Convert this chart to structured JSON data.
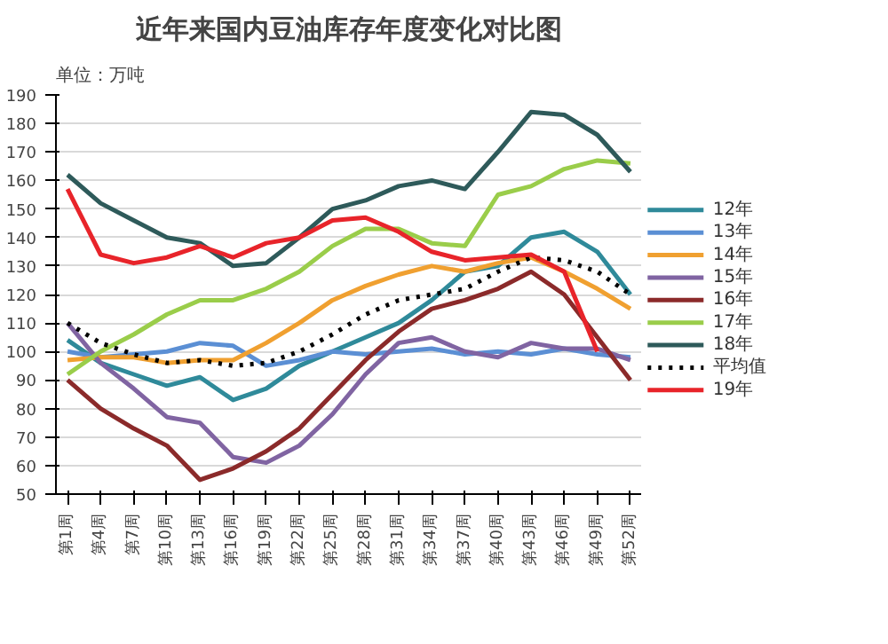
{
  "chart_data": {
    "type": "line",
    "title": "近年来国内豆油库存年度变化对比图",
    "ylabel": "单位：万吨",
    "categories": [
      "第1周",
      "第4周",
      "第7周",
      "第10周",
      "第13周",
      "第16周",
      "第19周",
      "第22周",
      "第25周",
      "第28周",
      "第31周",
      "第34周",
      "第37周",
      "第40周",
      "第43周",
      "第46周",
      "第49周",
      "第52周"
    ],
    "ylim": [
      50,
      190
    ],
    "yticks": [
      50,
      60,
      70,
      80,
      90,
      100,
      110,
      120,
      130,
      140,
      150,
      160,
      170,
      180,
      190
    ],
    "grid": "y",
    "legend": "right",
    "marker": "none",
    "series": [
      {
        "name": "12年",
        "color": "#2f8a9a",
        "values": [
          104,
          96,
          92,
          88,
          91,
          83,
          87,
          95,
          100,
          105,
          110,
          118,
          128,
          130,
          140,
          142,
          135,
          120
        ]
      },
      {
        "name": "13年",
        "color": "#5b8fd4",
        "values": [
          100,
          98,
          99,
          100,
          103,
          102,
          95,
          97,
          100,
          99,
          100,
          101,
          99,
          100,
          99,
          101,
          99,
          98
        ]
      },
      {
        "name": "14年",
        "color": "#f0a030",
        "values": [
          97,
          98,
          98,
          96,
          97,
          97,
          103,
          110,
          118,
          123,
          127,
          130,
          128,
          131,
          133,
          128,
          122,
          115
        ]
      },
      {
        "name": "15年",
        "color": "#8064a2",
        "values": [
          110,
          96,
          87,
          77,
          75,
          63,
          61,
          67,
          78,
          92,
          103,
          105,
          100,
          98,
          103,
          101,
          101,
          97
        ]
      },
      {
        "name": "16年",
        "color": "#8b2a2a",
        "values": [
          90,
          80,
          73,
          67,
          55,
          59,
          65,
          73,
          85,
          97,
          107,
          115,
          118,
          122,
          128,
          120,
          105,
          90
        ]
      },
      {
        "name": "17年",
        "color": "#9acd4a",
        "values": [
          92,
          100,
          106,
          113,
          118,
          118,
          122,
          128,
          137,
          143,
          143,
          138,
          137,
          155,
          158,
          164,
          167,
          166
        ]
      },
      {
        "name": "18年",
        "color": "#2e5a5a",
        "values": [
          162,
          152,
          146,
          140,
          138,
          130,
          131,
          140,
          150,
          153,
          158,
          160,
          157,
          170,
          184,
          183,
          176,
          163
        ]
      },
      {
        "name": "平均值",
        "color": "#000000",
        "line_style": "dotted",
        "values": [
          110,
          103,
          99,
          96,
          97,
          95,
          96,
          100,
          106,
          113,
          118,
          120,
          122,
          128,
          133,
          132,
          128,
          120
        ]
      },
      {
        "name": "19年",
        "color": "#e8242a",
        "values": [
          157,
          134,
          131,
          133,
          137,
          133,
          138,
          140,
          146,
          147,
          142,
          135,
          132,
          133,
          134,
          128,
          100,
          null
        ]
      }
    ]
  }
}
